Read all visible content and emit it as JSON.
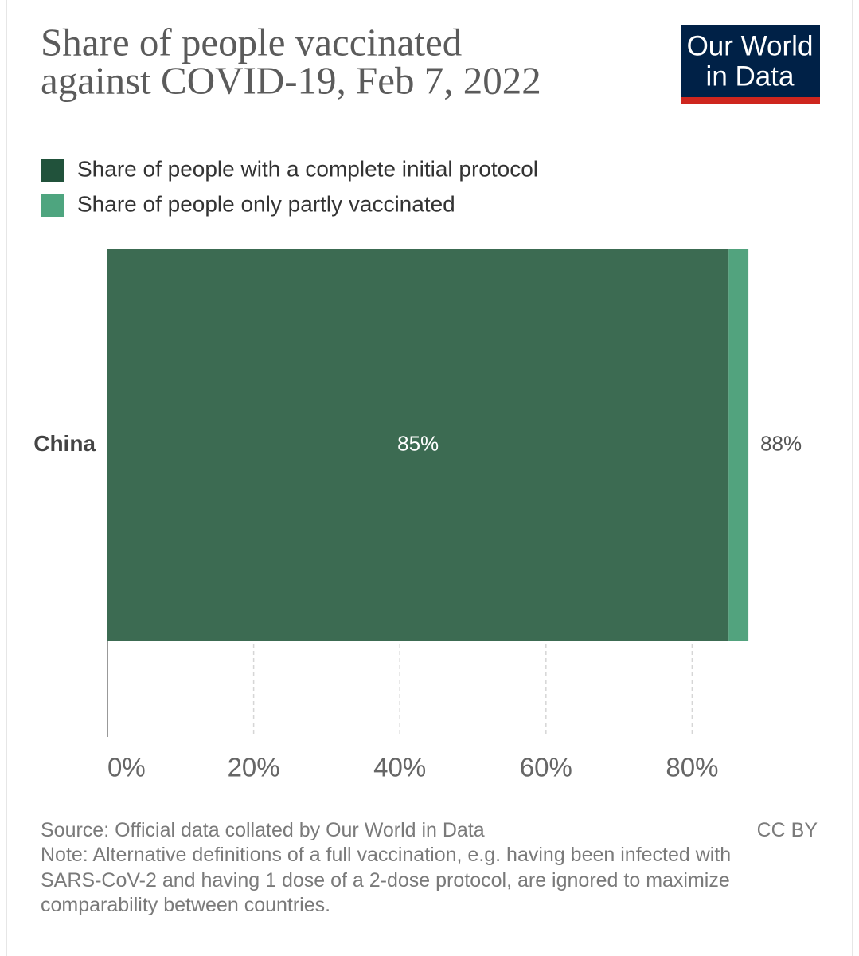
{
  "chart_data": {
    "type": "stacked-bar-horizontal",
    "title": "Share of people vaccinated",
    "title_line2": "against COVID-19, Feb 7, 2022",
    "logo": [
      "Our World",
      "in Data"
    ],
    "categories": [
      "China"
    ],
    "series": [
      {
        "name": "Share of people with a complete initial protocol",
        "color": "#3c6b52",
        "legend_color": "#21523b",
        "values": [
          85
        ],
        "value_labels": [
          "85%"
        ]
      },
      {
        "name": "Share of people only partly vaccinated",
        "color": "#52a37e",
        "legend_color": "#4ea57f",
        "values": [
          2.7
        ]
      }
    ],
    "totals": [
      88
    ],
    "total_labels": [
      "88%"
    ],
    "xlim": [
      0,
      100
    ],
    "xticks": [
      {
        "value": 0,
        "label": "0%"
      },
      {
        "value": 20,
        "label": "20%"
      },
      {
        "value": 40,
        "label": "40%"
      },
      {
        "value": 60,
        "label": "60%"
      },
      {
        "value": 80,
        "label": "80%"
      }
    ],
    "grid": true,
    "source": "Source: Official data collated by Our World in Data",
    "license": "CC BY",
    "note": "Note: Alternative definitions of a full vaccination, e.g. having been infected with SARS-CoV-2 and having 1 dose of a 2-dose protocol, are ignored to maximize comparability between countries."
  }
}
